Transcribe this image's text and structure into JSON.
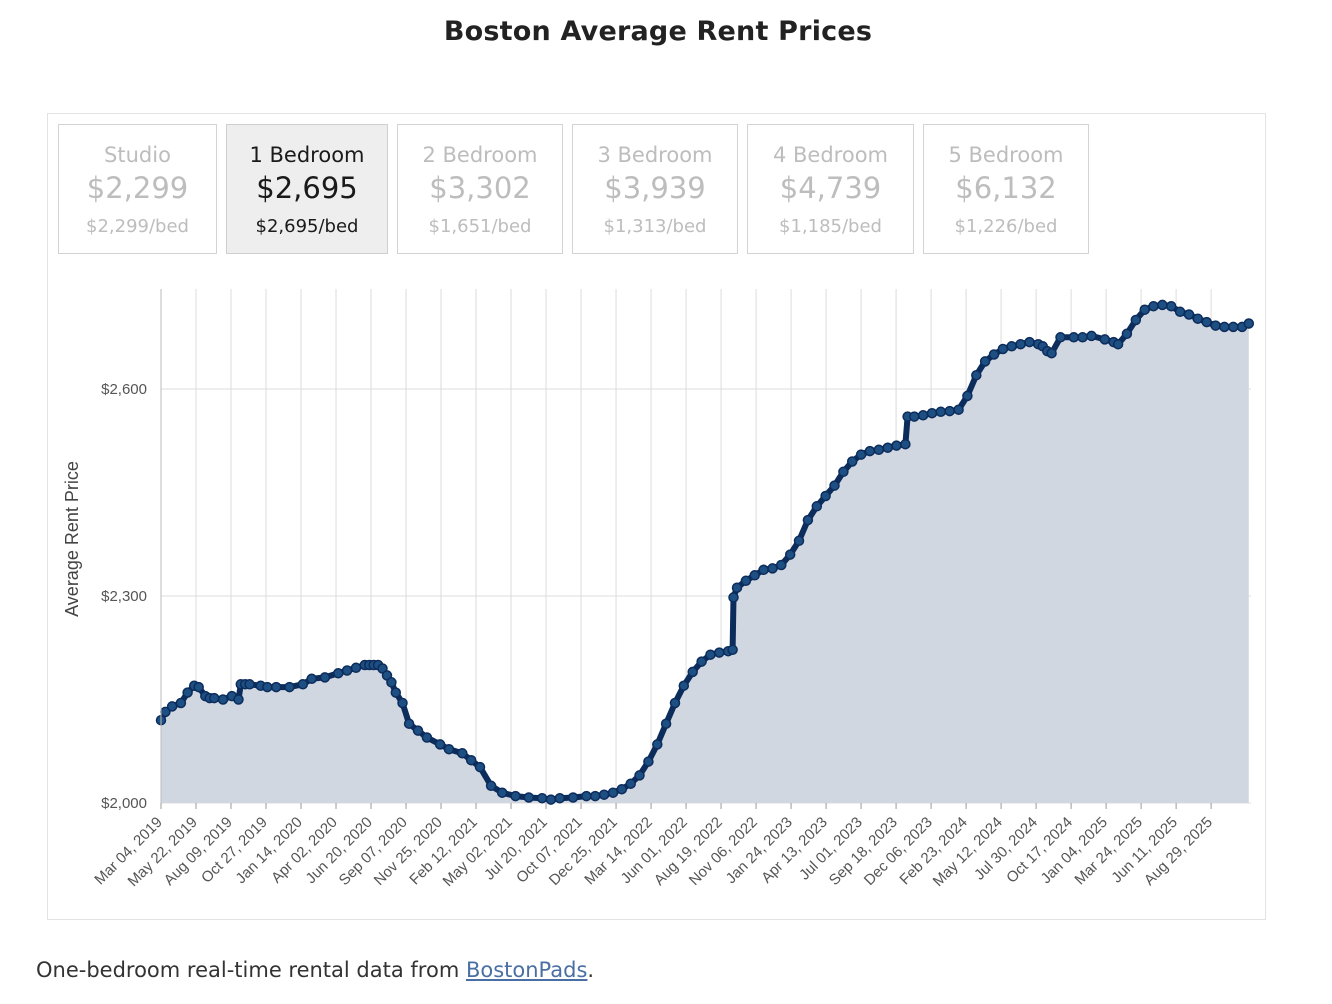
{
  "title": "Boston Average Rent Prices",
  "tabs": [
    {
      "name": "Studio",
      "price": "$2,299",
      "per_bed": "$2,299/bed",
      "active": false
    },
    {
      "name": "1 Bedroom",
      "price": "$2,695",
      "per_bed": "$2,695/bed",
      "active": true
    },
    {
      "name": "2 Bedroom",
      "price": "$3,302",
      "per_bed": "$1,651/bed",
      "active": false
    },
    {
      "name": "3 Bedroom",
      "price": "$3,939",
      "per_bed": "$1,313/bed",
      "active": false
    },
    {
      "name": "4 Bedroom",
      "price": "$4,739",
      "per_bed": "$1,185/bed",
      "active": false
    },
    {
      "name": "5 Bedroom",
      "price": "$6,132",
      "per_bed": "$1,226/bed",
      "active": false
    }
  ],
  "caption": {
    "prefix": "One-bedroom real-time rental data from ",
    "link_text": "BostonPads",
    "suffix": "."
  },
  "colors": {
    "line": "#0c2c5c",
    "fill": "#d1d7e1",
    "active_tab_bg": "#eeeeee",
    "inactive_text": "#bdbdbd"
  },
  "chart_data": {
    "type": "area",
    "title": "Boston Average Rent Prices",
    "xlabel": "",
    "ylabel": "Average Rent Price",
    "ylim": [
      2000,
      2745
    ],
    "y_ticks": [
      {
        "value": 2000,
        "label": "$2,000"
      },
      {
        "value": 2300,
        "label": "$2,300"
      },
      {
        "value": 2600,
        "label": "$2,600"
      }
    ],
    "x_range": [
      0,
      2460
    ],
    "x_ticks": [
      {
        "day": 0,
        "label": "Mar 04, 2019"
      },
      {
        "day": 79,
        "label": "May 22, 2019"
      },
      {
        "day": 158,
        "label": "Aug 09, 2019"
      },
      {
        "day": 237,
        "label": "Oct 27, 2019"
      },
      {
        "day": 316,
        "label": "Jan 14, 2020"
      },
      {
        "day": 395,
        "label": "Apr 02, 2020"
      },
      {
        "day": 474,
        "label": "Jun 20, 2020"
      },
      {
        "day": 553,
        "label": "Sep 07, 2020"
      },
      {
        "day": 632,
        "label": "Nov 25, 2020"
      },
      {
        "day": 711,
        "label": "Feb 12, 2021"
      },
      {
        "day": 790,
        "label": "May 02, 2021"
      },
      {
        "day": 869,
        "label": "Jul 20, 2021"
      },
      {
        "day": 948,
        "label": "Oct 07, 2021"
      },
      {
        "day": 1027,
        "label": "Dec 25, 2021"
      },
      {
        "day": 1106,
        "label": "Mar 14, 2022"
      },
      {
        "day": 1185,
        "label": "Jun 01, 2022"
      },
      {
        "day": 1264,
        "label": "Aug 19, 2022"
      },
      {
        "day": 1343,
        "label": "Nov 06, 2022"
      },
      {
        "day": 1422,
        "label": "Jan 24, 2023"
      },
      {
        "day": 1501,
        "label": "Apr 13, 2023"
      },
      {
        "day": 1580,
        "label": "Jul 01, 2023"
      },
      {
        "day": 1659,
        "label": "Sep 18, 2023"
      },
      {
        "day": 1738,
        "label": "Dec 06, 2023"
      },
      {
        "day": 1817,
        "label": "Feb 23, 2024"
      },
      {
        "day": 1896,
        "label": "May 12, 2024"
      },
      {
        "day": 1975,
        "label": "Jul 30, 2024"
      },
      {
        "day": 2054,
        "label": "Oct 17, 2024"
      },
      {
        "day": 2133,
        "label": "Jan 04, 2025"
      },
      {
        "day": 2212,
        "label": "Mar 24, 2025"
      },
      {
        "day": 2291,
        "label": "Jun 11, 2025"
      },
      {
        "day": 2370,
        "label": "Aug 29, 2025"
      }
    ],
    "series": [
      {
        "name": "1 Bedroom",
        "days": [
          0,
          10,
          25,
          45,
          60,
          75,
          85,
          100,
          110,
          120,
          140,
          160,
          175,
          180,
          190,
          200,
          225,
          240,
          260,
          290,
          320,
          340,
          370,
          400,
          420,
          440,
          460,
          470,
          480,
          490,
          500,
          510,
          520,
          530,
          545,
          560,
          580,
          600,
          630,
          650,
          680,
          700,
          720,
          745,
          770,
          800,
          830,
          860,
          880,
          900,
          930,
          960,
          980,
          1000,
          1020,
          1040,
          1060,
          1080,
          1100,
          1120,
          1140,
          1160,
          1180,
          1200,
          1220,
          1240,
          1260,
          1280,
          1290,
          1292,
          1300,
          1320,
          1340,
          1360,
          1380,
          1400,
          1420,
          1440,
          1460,
          1480,
          1500,
          1520,
          1540,
          1560,
          1580,
          1600,
          1620,
          1640,
          1660,
          1680,
          1685,
          1700,
          1720,
          1740,
          1760,
          1780,
          1800,
          1820,
          1840,
          1860,
          1880,
          1900,
          1920,
          1940,
          1960,
          1980,
          1990,
          2000,
          2010,
          2030,
          2060,
          2080,
          2100,
          2130,
          2150,
          2160,
          2180,
          2200,
          2220,
          2240,
          2260,
          2280,
          2300,
          2320,
          2340,
          2360,
          2380,
          2400,
          2420,
          2440,
          2455
        ],
        "values": [
          2120,
          2132,
          2140,
          2145,
          2160,
          2170,
          2168,
          2155,
          2152,
          2152,
          2150,
          2155,
          2150,
          2172,
          2172,
          2172,
          2170,
          2168,
          2168,
          2168,
          2172,
          2180,
          2182,
          2188,
          2192,
          2196,
          2200,
          2200,
          2200,
          2200,
          2195,
          2185,
          2175,
          2160,
          2145,
          2115,
          2105,
          2095,
          2085,
          2078,
          2072,
          2062,
          2052,
          2025,
          2015,
          2010,
          2008,
          2007,
          2005,
          2007,
          2008,
          2010,
          2010,
          2012,
          2015,
          2020,
          2028,
          2040,
          2060,
          2085,
          2115,
          2145,
          2170,
          2190,
          2205,
          2215,
          2218,
          2220,
          2222,
          2298,
          2312,
          2322,
          2330,
          2338,
          2340,
          2345,
          2360,
          2380,
          2410,
          2430,
          2445,
          2460,
          2480,
          2495,
          2505,
          2510,
          2512,
          2515,
          2518,
          2520,
          2560,
          2560,
          2562,
          2565,
          2567,
          2568,
          2570,
          2590,
          2620,
          2640,
          2650,
          2658,
          2662,
          2665,
          2668,
          2665,
          2662,
          2655,
          2652,
          2675,
          2675,
          2675,
          2677,
          2672,
          2668,
          2665,
          2680,
          2700,
          2715,
          2720,
          2722,
          2720,
          2712,
          2708,
          2702,
          2697,
          2692,
          2690,
          2690,
          2690,
          2695
        ]
      }
    ]
  }
}
